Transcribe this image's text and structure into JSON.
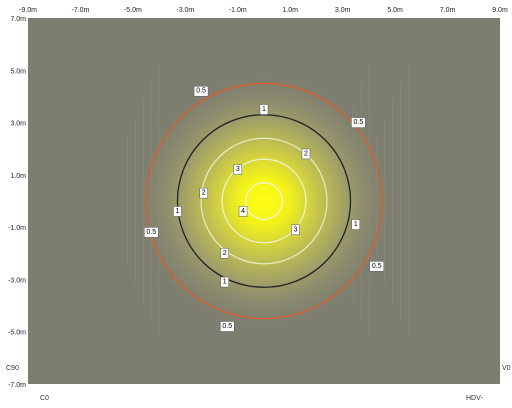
{
  "chart_data": {
    "type": "heatmap",
    "title": "",
    "xlabel": "",
    "ylabel": "",
    "x_ticks": [
      "-9.0m",
      "-7.0m",
      "-5.0m",
      "-3.0m",
      "-1.0m",
      "1.0m",
      "3.0m",
      "5.0m",
      "7.0m",
      "9.0m"
    ],
    "x_tick_values": [
      -9,
      -7,
      -5,
      -3,
      -1,
      1,
      3,
      5,
      7,
      9
    ],
    "y_ticks": [
      "7.0m",
      "5.0m",
      "3.0m",
      "1.0m",
      "-1.0m",
      "-3.0m",
      "-5.0m",
      "-7.0m"
    ],
    "y_tick_values": [
      7,
      5,
      3,
      1,
      -1,
      -3,
      -5,
      -7
    ],
    "xlim": [
      -9,
      9
    ],
    "ylim": [
      -7,
      7
    ],
    "grid": false,
    "center": [
      0,
      0
    ],
    "contours": [
      {
        "level": "4",
        "radius": 0.7,
        "color": "#f4f4d0"
      },
      {
        "level": "3",
        "radius": 1.6,
        "color": "#f0f0c8"
      },
      {
        "level": "2",
        "radius": 2.4,
        "color": "#e8e8c0"
      },
      {
        "level": "1",
        "radius": 3.3,
        "color": "#222222"
      },
      {
        "level": "0.5",
        "radius": 4.5,
        "color": "#e05a2a"
      }
    ],
    "contour_labels": [
      {
        "text": "4",
        "x": -0.8,
        "y": -0.4
      },
      {
        "text": "3",
        "x": -1.0,
        "y": 1.2
      },
      {
        "text": "3",
        "x": 1.2,
        "y": -1.1
      },
      {
        "text": "2",
        "x": -2.3,
        "y": 0.3
      },
      {
        "text": "2",
        "x": 1.6,
        "y": 1.8
      },
      {
        "text": "2",
        "x": -1.5,
        "y": -2.0
      },
      {
        "text": "1",
        "x": 0.0,
        "y": 3.5
      },
      {
        "text": "1",
        "x": -3.3,
        "y": -0.4
      },
      {
        "text": "1",
        "x": 3.5,
        "y": -0.9
      },
      {
        "text": "1",
        "x": -1.5,
        "y": -3.1
      },
      {
        "text": "0.5",
        "x": -2.4,
        "y": 4.2
      },
      {
        "text": "0.5",
        "x": 3.6,
        "y": 3.0
      },
      {
        "text": "0.5",
        "x": -4.3,
        "y": -1.2
      },
      {
        "text": "0.5",
        "x": 4.3,
        "y": -2.5
      },
      {
        "text": "0.5",
        "x": -1.4,
        "y": -4.8
      }
    ],
    "corner_labels": {
      "top_left": "C90",
      "bottom_left": "C0",
      "right": "V0",
      "bottom_right": "HDV-"
    },
    "colors": {
      "background": "#7d7d70",
      "hotspot": "#ffff10",
      "halo": "#a8a870",
      "outer_contour": "#e05a2a",
      "one_contour": "#222222"
    }
  }
}
